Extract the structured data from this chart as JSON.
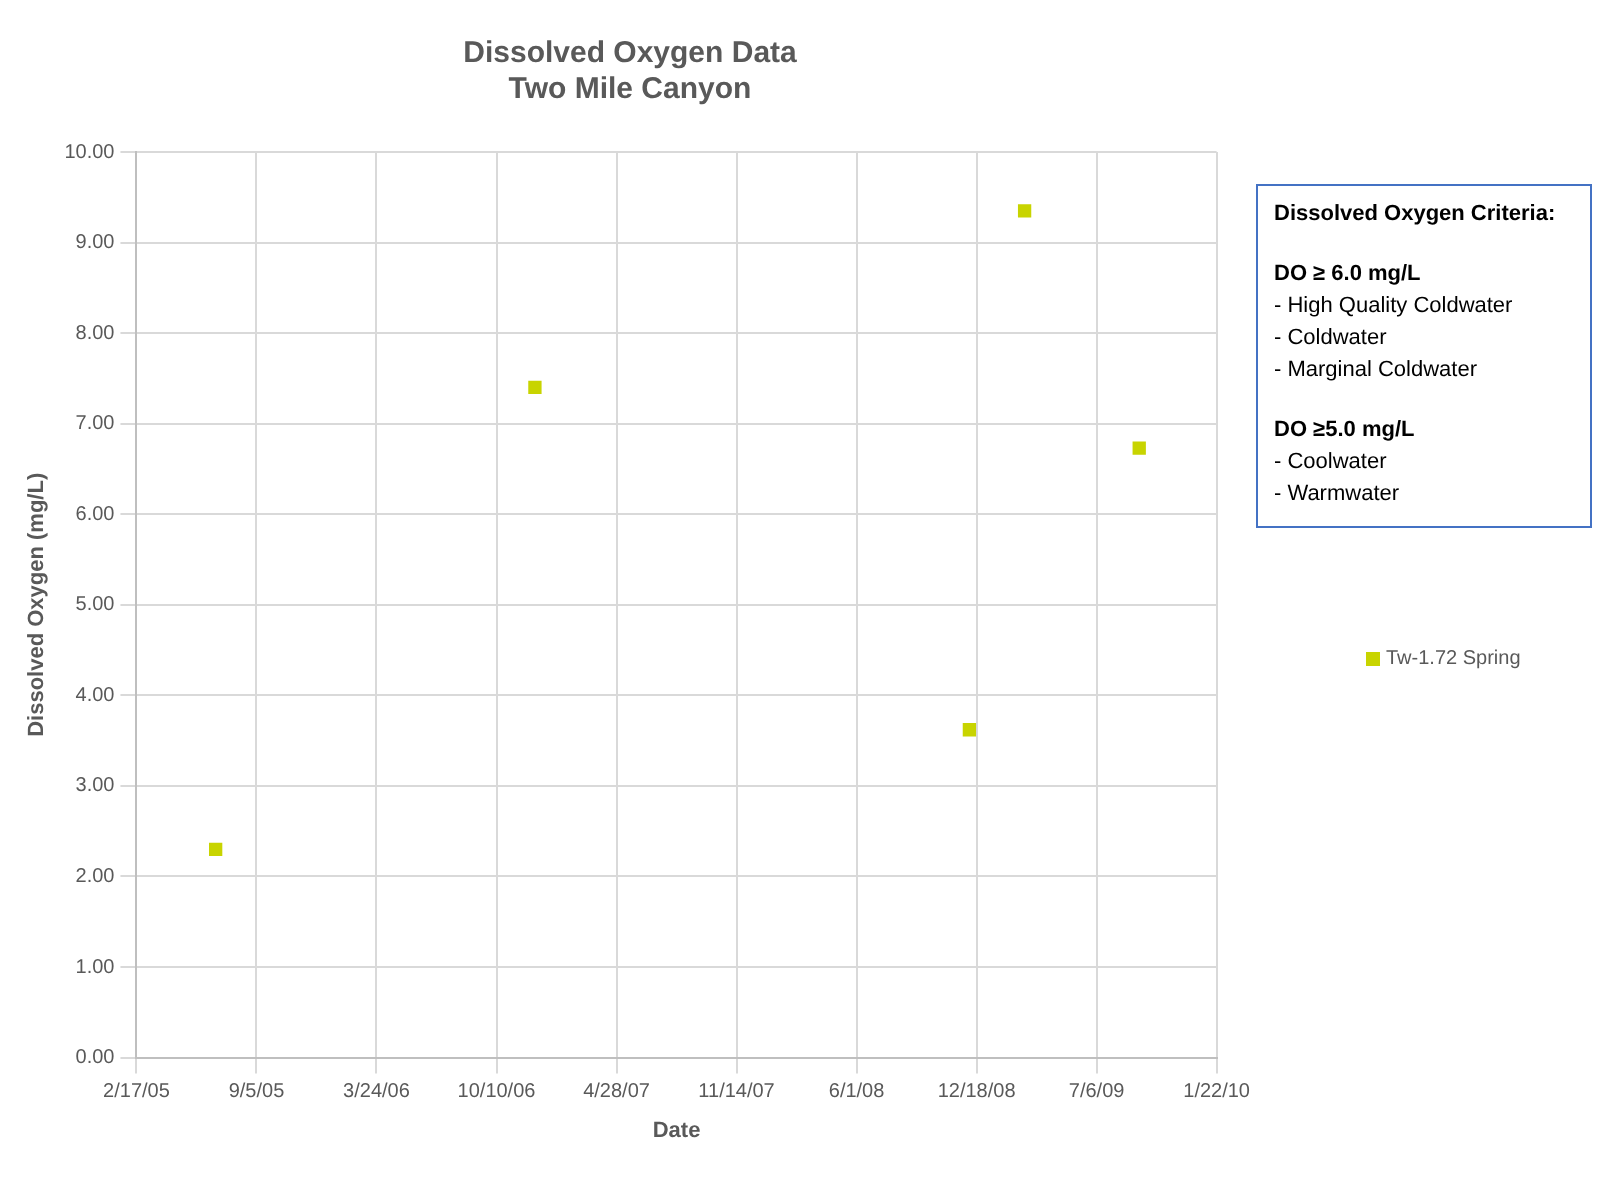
{
  "chart_data": {
    "type": "scatter",
    "title": "Dissolved Oxygen Data",
    "subtitle": "Two Mile Canyon",
    "xlabel": "Date",
    "ylabel": "Dissolved Oxygen (mg/L)",
    "x": [
      "2005-06-29",
      "2006-12-13",
      "2008-12-06",
      "2009-03-08",
      "2009-09-15"
    ],
    "series": [
      {
        "name": "Tw-1.72 Spring",
        "color": "#c8d400",
        "values": [
          2.3,
          7.4,
          3.62,
          9.35,
          6.73
        ]
      }
    ],
    "xlim": [
      "2005-02-17",
      "2010-01-22"
    ],
    "xticks": [
      {
        "value": "2005-02-17",
        "label": "2/17/05"
      },
      {
        "value": "2005-09-05",
        "label": "9/5/05"
      },
      {
        "value": "2006-03-24",
        "label": "3/24/06"
      },
      {
        "value": "2006-10-10",
        "label": "10/10/06"
      },
      {
        "value": "2007-04-28",
        "label": "4/28/07"
      },
      {
        "value": "2007-11-14",
        "label": "11/14/07"
      },
      {
        "value": "2008-06-01",
        "label": "6/1/08"
      },
      {
        "value": "2008-12-18",
        "label": "12/18/08"
      },
      {
        "value": "2009-07-06",
        "label": "7/6/09"
      },
      {
        "value": "2010-01-22",
        "label": "1/22/10"
      }
    ],
    "ylim": [
      0,
      10
    ],
    "yticks": [
      {
        "value": 0,
        "label": "0.00"
      },
      {
        "value": 1,
        "label": "1.00"
      },
      {
        "value": 2,
        "label": "2.00"
      },
      {
        "value": 3,
        "label": "3.00"
      },
      {
        "value": 4,
        "label": "4.00"
      },
      {
        "value": 5,
        "label": "5.00"
      },
      {
        "value": 6,
        "label": "6.00"
      },
      {
        "value": 7,
        "label": "7.00"
      },
      {
        "value": 8,
        "label": "8.00"
      },
      {
        "value": 9,
        "label": "9.00"
      },
      {
        "value": 10,
        "label": "10.00"
      }
    ],
    "grid": true,
    "legend": "right",
    "marker": "square",
    "annotations": [
      "Dissolved Oxygen Criteria:",
      "DO ≥ 6.0 mg/L\n- High Quality Coldwater\n- Coldwater\n- Marginal Coldwater",
      "DO ≥5.0 mg/L\n- Coolwater\n- Warmwater"
    ]
  }
}
